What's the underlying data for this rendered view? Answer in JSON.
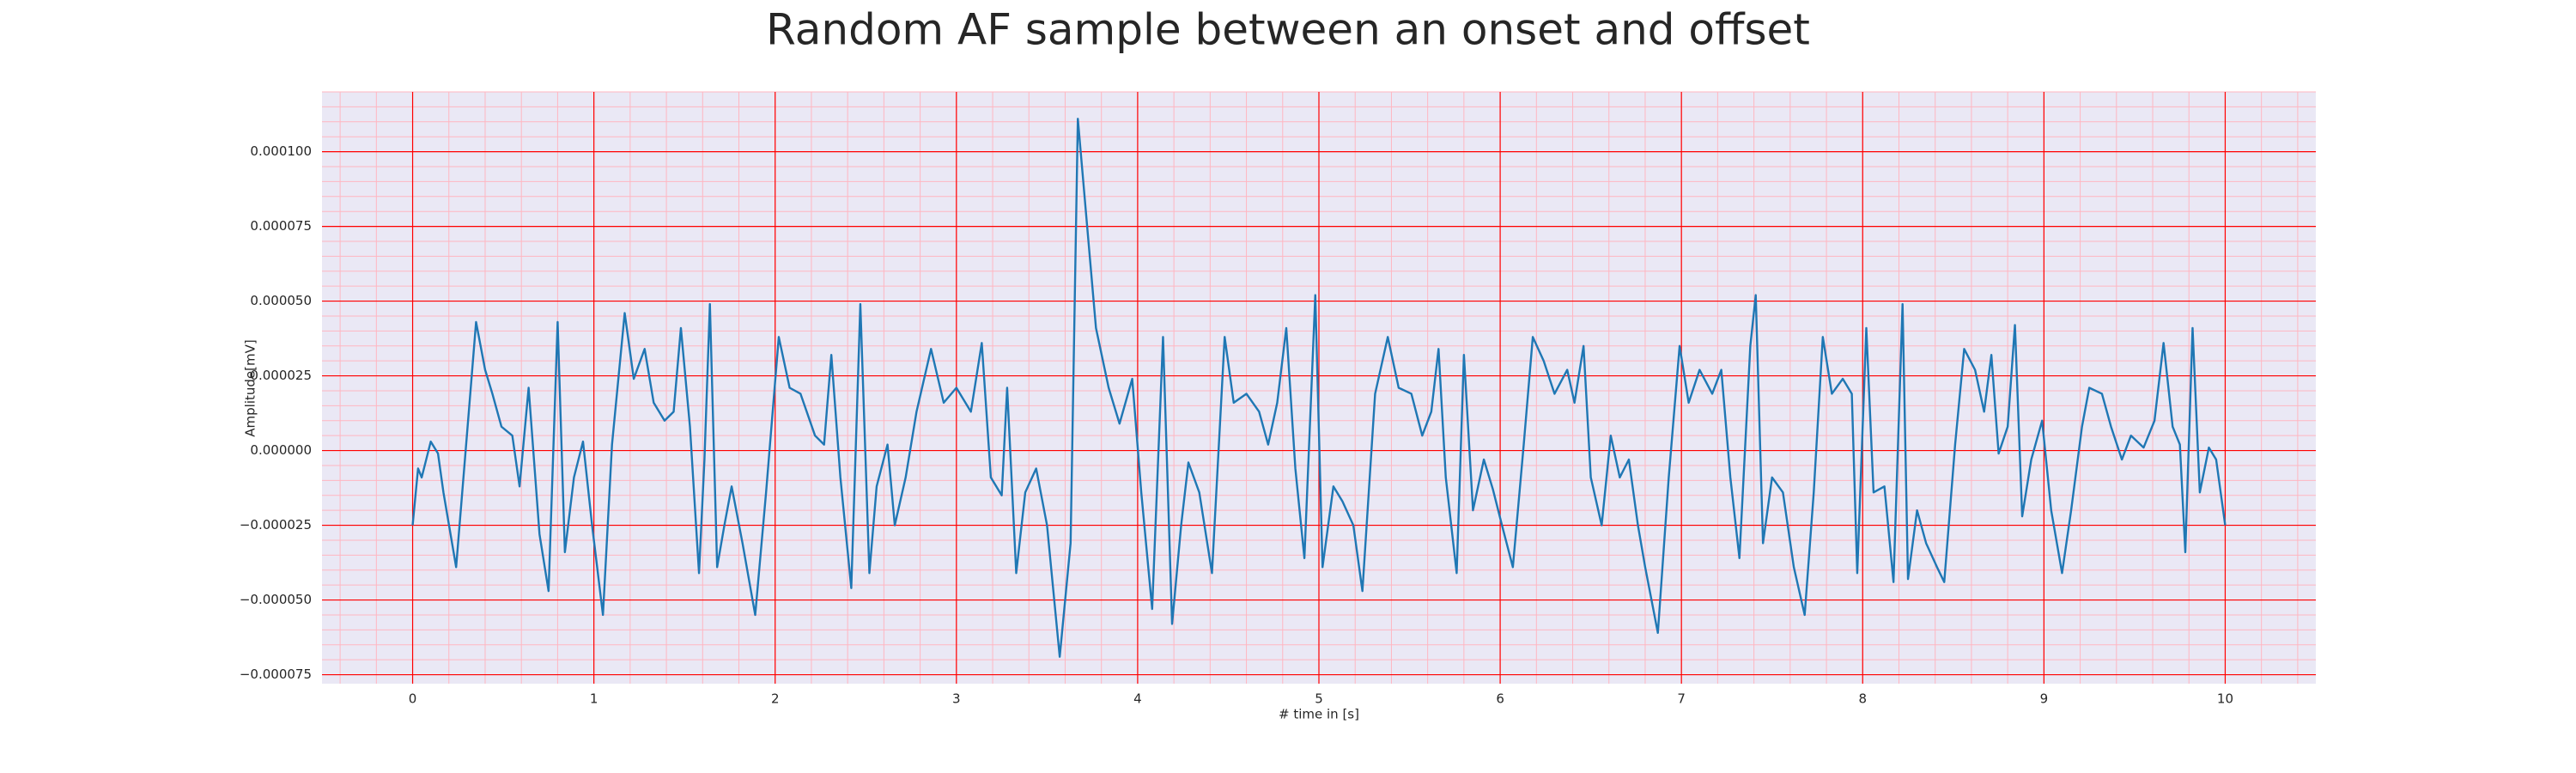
{
  "chart_data": {
    "type": "line",
    "title": "Random AF sample between an onset and offset",
    "xlabel": "# time in [s]",
    "ylabel": "Amplitude[mV]",
    "xlim": [
      -0.5,
      10.5
    ],
    "ylim": [
      -7.8e-05,
      0.00012
    ],
    "xticks": [
      0,
      1,
      2,
      3,
      4,
      5,
      6,
      7,
      8,
      9,
      10
    ],
    "yticks": [
      {
        "value": -7.5e-05,
        "label": "−0.000075"
      },
      {
        "value": -5e-05,
        "label": "−0.000050"
      },
      {
        "value": -2.5e-05,
        "label": "−0.000025"
      },
      {
        "value": 0,
        "label": "0.000000"
      },
      {
        "value": 2.5e-05,
        "label": "0.000025"
      },
      {
        "value": 5e-05,
        "label": "0.000050"
      },
      {
        "value": 7.5e-05,
        "label": "0.000075"
      },
      {
        "value": 0.0001,
        "label": "0.000100"
      }
    ],
    "grid": true,
    "minor_grid": true,
    "grid_color": "#ff0000",
    "minor_grid_color": "#ffb6c1",
    "background": "#eae8f5",
    "x": [
      0,
      0.03,
      0.05,
      0.1,
      0.14,
      0.17,
      0.24,
      0.31,
      0.35,
      0.4,
      0.44,
      0.49,
      0.55,
      0.59,
      0.64,
      0.7,
      0.75,
      0.8,
      0.84,
      0.89,
      0.94,
      0.99,
      1.05,
      1.1,
      1.17,
      1.22,
      1.28,
      1.33,
      1.39,
      1.44,
      1.48,
      1.53,
      1.58,
      1.61,
      1.64,
      1.68,
      1.72,
      1.76,
      1.82,
      1.89,
      1.95,
      2.02,
      2.08,
      2.14,
      2.22,
      2.27,
      2.31,
      2.36,
      2.42,
      2.47,
      2.52,
      2.56,
      2.62,
      2.66,
      2.72,
      2.78,
      2.86,
      2.93,
      3.0,
      3.08,
      3.14,
      3.19,
      3.25,
      3.28,
      3.33,
      3.38,
      3.44,
      3.5,
      3.57,
      3.63,
      3.67,
      3.72,
      3.77,
      3.84,
      3.9,
      3.97,
      4.02,
      4.08,
      4.14,
      4.19,
      4.24,
      4.28,
      4.34,
      4.41,
      4.48,
      4.53,
      4.6,
      4.67,
      4.72,
      4.77,
      4.82,
      4.87,
      4.92,
      4.98,
      5.02,
      5.08,
      5.13,
      5.19,
      5.24,
      5.31,
      5.38,
      5.44,
      5.51,
      5.57,
      5.62,
      5.66,
      5.7,
      5.76,
      5.8,
      5.85,
      5.91,
      5.96,
      6.01,
      6.07,
      6.13,
      6.18,
      6.24,
      6.3,
      6.37,
      6.41,
      6.46,
      6.5,
      6.56,
      6.61,
      6.66,
      6.71,
      6.76,
      6.8,
      6.87,
      6.93,
      6.99,
      7.04,
      7.1,
      7.17,
      7.22,
      7.27,
      7.32,
      7.38,
      7.41,
      7.45,
      7.5,
      7.56,
      7.62,
      7.68,
      7.73,
      7.78,
      7.83,
      7.89,
      7.94,
      7.97,
      8.02,
      8.06,
      8.12,
      8.17,
      8.22,
      8.25,
      8.3,
      8.35,
      8.41,
      8.45,
      8.51,
      8.56,
      8.62,
      8.67,
      8.71,
      8.75,
      8.8,
      8.84,
      8.88,
      8.93,
      8.99,
      9.04,
      9.1,
      9.15,
      9.21,
      9.25,
      9.32,
      9.37,
      9.43,
      9.48,
      9.55,
      9.61,
      9.66,
      9.71,
      9.75,
      9.78,
      9.82,
      9.86,
      9.91,
      9.95,
      10.0
    ],
    "series": [
      {
        "color": "#1f77b4",
        "values": [
          -2.5e-05,
          -6e-06,
          -9e-06,
          3e-06,
          -1e-06,
          -1.4e-05,
          -3.9e-05,
          1.3e-05,
          4.3e-05,
          2.7e-05,
          1.9e-05,
          8e-06,
          5e-06,
          -1.2e-05,
          2.1e-05,
          -2.8e-05,
          -4.7e-05,
          4.3e-05,
          -3.4e-05,
          -9e-06,
          3e-06,
          -2.5e-05,
          -5.5e-05,
          2e-06,
          4.6e-05,
          2.4e-05,
          3.4e-05,
          1.6e-05,
          1e-05,
          1.3e-05,
          4.1e-05,
          8e-06,
          -4.1e-05,
          -3e-06,
          4.9e-05,
          -3.9e-05,
          -2.5e-05,
          -1.2e-05,
          -3.1e-05,
          -5.5e-05,
          -1.4e-05,
          3.8e-05,
          2.1e-05,
          1.9e-05,
          5e-06,
          2e-06,
          3.2e-05,
          -9e-06,
          -4.6e-05,
          4.9e-05,
          -4.1e-05,
          -1.2e-05,
          2e-06,
          -2.5e-05,
          -9e-06,
          1.3e-05,
          3.4e-05,
          1.6e-05,
          2.1e-05,
          1.3e-05,
          3.6e-05,
          -9e-06,
          -1.5e-05,
          2.1e-05,
          -4.1e-05,
          -1.4e-05,
          -6e-06,
          -2.5e-05,
          -6.9e-05,
          -3.1e-05,
          0.000111,
          7.6e-05,
          4.1e-05,
          2.1e-05,
          9e-06,
          2.4e-05,
          -1.4e-05,
          -5.3e-05,
          3.8e-05,
          -5.8e-05,
          -2.5e-05,
          -4e-06,
          -1.4e-05,
          -4.1e-05,
          3.8e-05,
          1.6e-05,
          1.9e-05,
          1.3e-05,
          2e-06,
          1.6e-05,
          4.1e-05,
          -6e-06,
          -3.6e-05,
          5.2e-05,
          -3.9e-05,
          -1.2e-05,
          -1.7e-05,
          -2.5e-05,
          -4.7e-05,
          1.9e-05,
          3.8e-05,
          2.1e-05,
          1.9e-05,
          5e-06,
          1.3e-05,
          3.4e-05,
          -9e-06,
          -4.1e-05,
          3.2e-05,
          -2e-05,
          -3e-06,
          -1.3e-05,
          -2.5e-05,
          -3.9e-05,
          2e-06,
          3.8e-05,
          3e-05,
          1.9e-05,
          2.7e-05,
          1.6e-05,
          3.5e-05,
          -9e-06,
          -2.5e-05,
          5e-06,
          -9e-06,
          -3e-06,
          -2.5e-05,
          -3.9e-05,
          -6.1e-05,
          -9e-06,
          3.5e-05,
          1.6e-05,
          2.7e-05,
          1.9e-05,
          2.7e-05,
          -9e-06,
          -3.6e-05,
          3.5e-05,
          5.2e-05,
          -3.1e-05,
          -9e-06,
          -1.4e-05,
          -3.9e-05,
          -5.5e-05,
          -1.4e-05,
          3.8e-05,
          1.9e-05,
          2.4e-05,
          1.9e-05,
          -4.1e-05,
          4.1e-05,
          -1.4e-05,
          -1.2e-05,
          -4.4e-05,
          4.9e-05,
          -4.3e-05,
          -2e-05,
          -3.1e-05,
          -3.9e-05,
          -4.4e-05,
          2e-06,
          3.4e-05,
          2.7e-05,
          1.3e-05,
          3.2e-05,
          -1e-06,
          8e-06,
          4.2e-05,
          -2.2e-05,
          -3e-06,
          1e-05,
          -2e-05,
          -4.1e-05,
          -2e-05,
          8e-06,
          2.1e-05,
          1.9e-05,
          8e-06,
          -3e-06,
          5e-06,
          1e-06,
          1e-05,
          3.6e-05,
          8e-06,
          2e-06,
          -3.4e-05,
          4.1e-05,
          -1.4e-05,
          1e-06,
          -3e-06,
          -2.5e-05
        ]
      }
    ]
  }
}
